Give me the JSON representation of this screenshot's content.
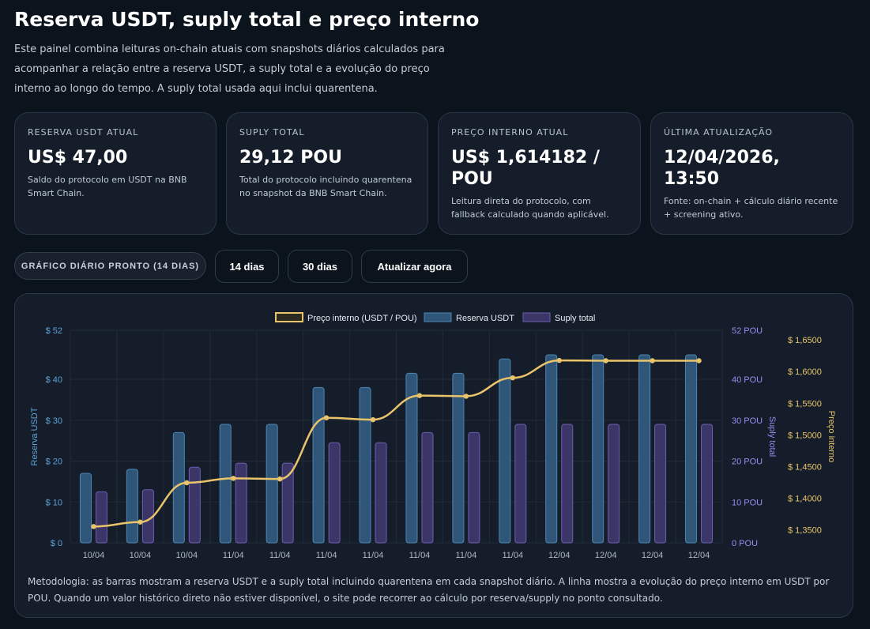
{
  "header": {
    "title": "Reserva USDT, suply total e preço interno",
    "description": "Este painel combina leituras on-chain atuais com snapshots diários calculados para acompanhar a relação entre a reserva USDT, a suply total e a evolução do preço interno ao longo do tempo. A suply total usada aqui inclui quarentena."
  },
  "cards": [
    {
      "label": "RESERVA USDT ATUAL",
      "value": "US$ 47,00",
      "note": "Saldo do protocolo em USDT na BNB Smart Chain."
    },
    {
      "label": "SUPLY TOTAL",
      "value": "29,12 POU",
      "note": "Total do protocolo incluindo quarentena no snapshot da BNB Smart Chain."
    },
    {
      "label": "PREÇO INTERNO ATUAL",
      "value": "US$ 1,614182 / POU",
      "note": "Leitura direta do protocolo, com fallback calculado quando aplicável."
    },
    {
      "label": "ÚLTIMA ATUALIZAÇÃO",
      "value": "12/04/2026, 13:50",
      "note": "Fonte: on-chain + cálculo diário recente + screening ativo."
    }
  ],
  "controls": {
    "status": "GRÁFICO DIÁRIO PRONTO (14 DIAS)",
    "btn_14": "14 dias",
    "btn_30": "30 dias",
    "btn_refresh": "Atualizar agora"
  },
  "methodology": "Metodologia: as barras mostram a reserva USDT e a suply total incluindo quarentena em cada snapshot diário. A linha mostra a evolução do preço interno em USDT por POU. Quando um valor histórico direto não estiver disponível, o site pode recorrer ao cálculo por reserva/supply no ponto consultado.",
  "colors": {
    "reserve": "#3f6f98",
    "supply": "#4e4580",
    "price": "#e9c46a",
    "reserve_axis": "#5fa2d6",
    "supply_axis": "#9a8cf0",
    "price_axis": "#e9c46a"
  },
  "chart_data": {
    "type": "bar",
    "categories": [
      "10/04",
      "10/04",
      "10/04",
      "11/04",
      "11/04",
      "11/04",
      "11/04",
      "11/04",
      "11/04",
      "11/04",
      "12/04",
      "12/04",
      "12/04",
      "12/04"
    ],
    "series": [
      {
        "name": "Preço interno (USDT / POU)",
        "type": "line",
        "axis": "price",
        "values": [
          1.3555,
          1.3625,
          1.4245,
          1.4315,
          1.4305,
          1.527,
          1.524,
          1.562,
          1.561,
          1.59,
          1.6175,
          1.617,
          1.617,
          1.617
        ]
      },
      {
        "name": "Reserva USDT",
        "type": "bar",
        "axis": "reserve",
        "values": [
          17,
          18,
          27,
          29,
          29,
          38,
          38,
          41.5,
          41.5,
          45,
          46,
          46,
          46,
          46
        ]
      },
      {
        "name": "Suply total",
        "type": "bar",
        "axis": "supply",
        "values": [
          12.5,
          13,
          18.5,
          19.5,
          19.5,
          24.5,
          24.5,
          27,
          27,
          29,
          29,
          29,
          29,
          29
        ]
      }
    ],
    "axes": {
      "reserve": {
        "label": "Reserva USDT",
        "min": 0,
        "max": 52,
        "ticks": [
          "$ 0",
          "$ 10",
          "$ 20",
          "$ 30",
          "$ 40",
          "$ 52"
        ],
        "tick_values": [
          0,
          10,
          20,
          30,
          40,
          52
        ]
      },
      "supply": {
        "label": "Suply total",
        "min": 0,
        "max": 52,
        "ticks": [
          "0 POU",
          "10 POU",
          "20 POU",
          "30 POU",
          "40 POU",
          "52 POU"
        ],
        "tick_values": [
          0,
          10,
          20,
          30,
          40,
          52
        ]
      },
      "price": {
        "label": "Preço interno",
        "min": 1.3297,
        "max": 1.665,
        "ticks": [
          "$ 1,3500",
          "$ 1,4000",
          "$ 1,4500",
          "$ 1,5000",
          "$ 1,5500",
          "$ 1,6000",
          "$ 1,6500"
        ],
        "tick_values": [
          1.35,
          1.4,
          1.45,
          1.5,
          1.55,
          1.6,
          1.65
        ]
      }
    },
    "grid": true,
    "legend_position": "top"
  }
}
